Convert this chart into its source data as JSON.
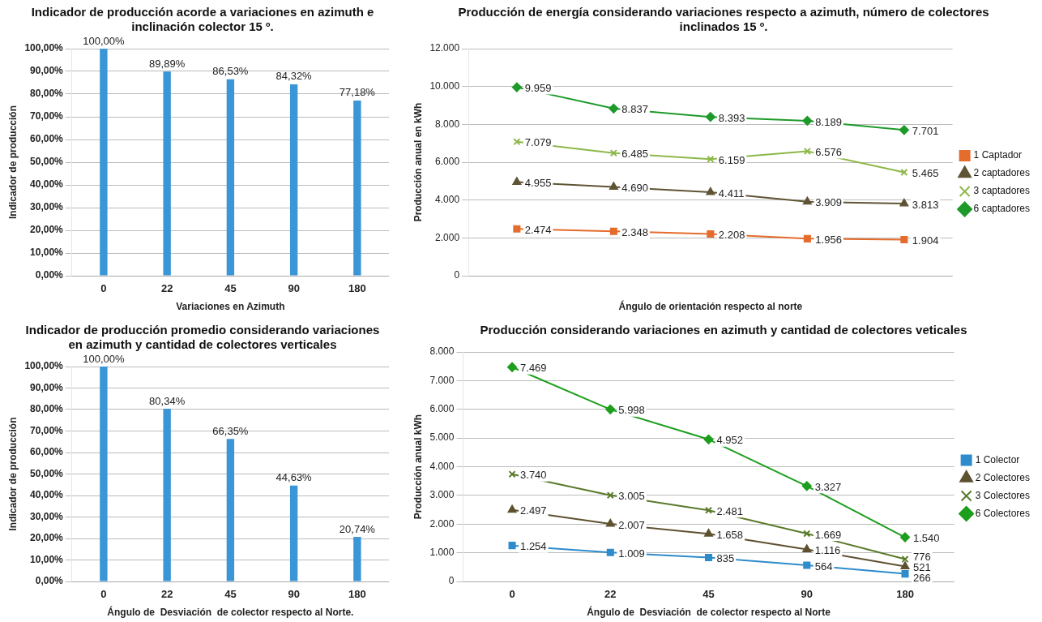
{
  "chart_data": [
    {
      "type": "bar",
      "title": "Indicador de producción acorde a variaciones en azimuth e inclinación colector 15 º.",
      "xlabel": "Variaciones en Azimuth",
      "ylabel": "Indicador de producción",
      "categories": [
        "0",
        "22",
        "45",
        "90",
        "180"
      ],
      "values": [
        100,
        89.89,
        86.53,
        84.32,
        77.18
      ],
      "value_labels": [
        "100,00%",
        "89,89%",
        "86,53%",
        "84,32%",
        "77,18%"
      ],
      "color": "#3a96d6",
      "ylim": [
        0,
        100
      ],
      "yticks": [
        {
          "value": 0,
          "label": "0,00%"
        },
        {
          "value": 10,
          "label": "10,00%"
        },
        {
          "value": 20,
          "label": "20,00%"
        },
        {
          "value": 30,
          "label": "30,00%"
        },
        {
          "value": 40,
          "label": "40,00%"
        },
        {
          "value": 50,
          "label": "50,00%"
        },
        {
          "value": 60,
          "label": "60,00%"
        },
        {
          "value": 70,
          "label": "70,00%"
        },
        {
          "value": 80,
          "label": "80,00%"
        },
        {
          "value": 90,
          "label": "90,00%"
        },
        {
          "value": 100,
          "label": "100,00%"
        }
      ],
      "grid": "y",
      "legend": false
    },
    {
      "type": "line",
      "title": "Producción de energía considerando variaciones respecto a azimuth, número de colectores inclinados 15 º.",
      "xlabel": "Ángulo de orientación respecto al norte",
      "ylabel": "Producción anual en kWh",
      "categories": [
        null,
        null,
        null,
        null,
        null
      ],
      "series": [
        {
          "name": "1 Captador",
          "color": "#e46c2c",
          "marker": "square",
          "values": [
            2474,
            2348,
            2208,
            1956,
            1904
          ],
          "value_labels": [
            "2.474",
            "2.348",
            "2.208",
            "1.956",
            "1.904"
          ]
        },
        {
          "name": "2 captadores",
          "color": "#5f5434",
          "marker": "triangle",
          "values": [
            4955,
            4690,
            4411,
            3909,
            3813
          ],
          "value_labels": [
            "4.955",
            "4.690",
            "4.411",
            "3.909",
            "3.813"
          ]
        },
        {
          "name": "3 captadores",
          "color": "#8db848",
          "marker": "cross",
          "values": [
            7079,
            6485,
            6159,
            6576,
            5465
          ],
          "value_labels": [
            "7.079",
            "6.485",
            "6.159",
            "6.576",
            "5.465"
          ]
        },
        {
          "name": "6 captadores",
          "color": "#1e9a2a",
          "marker": "diamond",
          "values": [
            9959,
            8837,
            8393,
            8189,
            7701
          ],
          "value_labels": [
            "9.959",
            "8.837",
            "8.393",
            "8.189",
            "7.701"
          ]
        }
      ],
      "ylim": [
        0,
        12000
      ],
      "yticks": [
        0,
        {
          "value": 2000,
          "label": "2.000"
        },
        {
          "value": 4000,
          "label": "4.000"
        },
        {
          "value": 6000,
          "label": "6.000"
        },
        {
          "value": 8000,
          "label": "8.000"
        },
        {
          "value": 10000,
          "label": "10.000"
        },
        {
          "value": 12000,
          "label": "12.000"
        }
      ],
      "grid": "y",
      "legend": "right"
    },
    {
      "type": "bar",
      "title": "Indicador de producción promedio considerando variaciones en azimuth y cantidad de colectores verticales",
      "xlabel": "Ángulo de  Desviación  de colector respecto al Norte.",
      "ylabel": "Indicador de producción",
      "categories": [
        "0",
        "22",
        "45",
        "90",
        "180"
      ],
      "values": [
        100,
        80.34,
        66.35,
        44.63,
        20.74
      ],
      "value_labels": [
        "100,00%",
        "80,34%",
        "66,35%",
        "44,63%",
        "20,74%"
      ],
      "color": "#3a96d6",
      "ylim": [
        0,
        100
      ],
      "yticks": [
        {
          "value": 0,
          "label": "0,00%"
        },
        {
          "value": 10,
          "label": "10,00%"
        },
        {
          "value": 20,
          "label": "20,00%"
        },
        {
          "value": 30,
          "label": "30,00%"
        },
        {
          "value": 40,
          "label": "40,00%"
        },
        {
          "value": 50,
          "label": "50,00%"
        },
        {
          "value": 60,
          "label": "60,00%"
        },
        {
          "value": 70,
          "label": "70,00%"
        },
        {
          "value": 80,
          "label": "80,00%"
        },
        {
          "value": 90,
          "label": "90,00%"
        },
        {
          "value": 100,
          "label": "100,00%"
        }
      ],
      "grid": "y",
      "legend": false
    },
    {
      "type": "line",
      "title": "Producción considerando variaciones en azimuth y cantidad de colectores veticales",
      "xlabel": "Ángulo de  Desviación  de colector respecto al Norte",
      "ylabel": "Producción anual kWh",
      "categories": [
        "0",
        "22",
        "45",
        "90",
        "180"
      ],
      "series": [
        {
          "name": "1 Colector",
          "color": "#2e8bcc",
          "marker": "square",
          "values": [
            1254,
            1009,
            835,
            564,
            266
          ],
          "value_labels": [
            "1.254",
            "1.009",
            "835",
            "564",
            "266"
          ]
        },
        {
          "name": "2 Colectores",
          "color": "#5e5130",
          "marker": "triangle",
          "values": [
            2497,
            2007,
            1658,
            1116,
            521
          ],
          "value_labels": [
            "2.497",
            "2.007",
            "1.658",
            "1.116",
            "521"
          ]
        },
        {
          "name": "3 Colectores",
          "color": "#5a7a2a",
          "marker": "cross",
          "values": [
            3740,
            3005,
            2481,
            1669,
            776
          ],
          "value_labels": [
            "3.740",
            "3.005",
            "2.481",
            "1.669",
            "776"
          ]
        },
        {
          "name": "6 Colectores",
          "color": "#1d9e1d",
          "marker": "diamond",
          "values": [
            7469,
            5998,
            4952,
            3327,
            1540
          ],
          "value_labels": [
            "7.469",
            "5.998",
            "4.952",
            "3.327",
            "1.540"
          ]
        }
      ],
      "ylim": [
        0,
        8000
      ],
      "yticks": [
        0,
        {
          "value": 1000,
          "label": "1.000"
        },
        {
          "value": 2000,
          "label": "2.000"
        },
        {
          "value": 3000,
          "label": "3.000"
        },
        {
          "value": 4000,
          "label": "4.000"
        },
        {
          "value": 5000,
          "label": "5.000"
        },
        {
          "value": 6000,
          "label": "6.000"
        },
        {
          "value": 7000,
          "label": "7.000"
        },
        {
          "value": 8000,
          "label": "8.000"
        }
      ],
      "grid": "y",
      "legend": "right"
    }
  ]
}
